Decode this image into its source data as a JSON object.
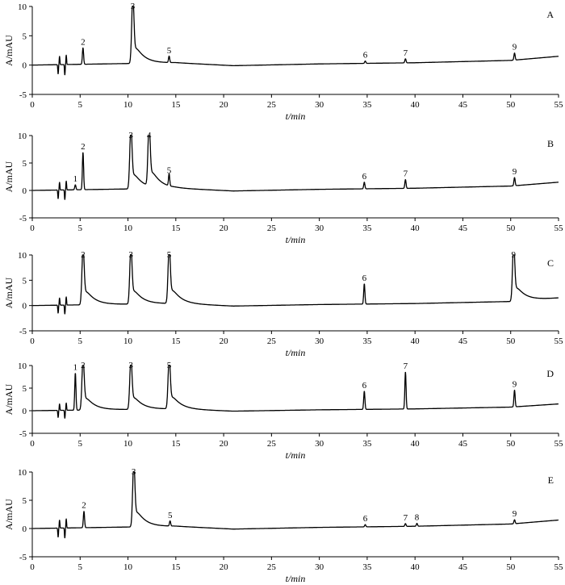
{
  "chart_data": [
    {
      "type": "line",
      "panel_label": "A",
      "xlabel": "t/min",
      "ylabel": "A/mAU",
      "xlim": [
        0,
        55
      ],
      "ylim": [
        -5,
        10
      ],
      "x_ticks": [
        0,
        5,
        10,
        15,
        20,
        25,
        30,
        35,
        40,
        45,
        50,
        55
      ],
      "y_ticks": [
        -5,
        0,
        5,
        10
      ],
      "baseline": [
        [
          0,
          0
        ],
        [
          15,
          0.4
        ],
        [
          21,
          -0.1
        ],
        [
          30,
          0.2
        ],
        [
          40,
          0.4
        ],
        [
          50,
          0.8
        ],
        [
          55,
          1.5
        ]
      ],
      "peaks": [
        {
          "label": "2",
          "t": 5.3,
          "height": 2.8
        },
        {
          "label": "3",
          "t": 10.5,
          "height": 11
        },
        {
          "label": "5",
          "t": 14.3,
          "height": 1.1
        },
        {
          "label": "6",
          "t": 34.8,
          "height": 0.4
        },
        {
          "label": "7",
          "t": 39.0,
          "height": 0.7
        },
        {
          "label": "9",
          "t": 50.4,
          "height": 1.2
        }
      ]
    },
    {
      "type": "line",
      "panel_label": "B",
      "xlabel": "t/min",
      "ylabel": "A/mAU",
      "xlim": [
        0,
        55
      ],
      "ylim": [
        -5,
        10
      ],
      "x_ticks": [
        0,
        5,
        10,
        15,
        20,
        25,
        30,
        35,
        40,
        45,
        50,
        55
      ],
      "y_ticks": [
        -5,
        0,
        5,
        10
      ],
      "baseline": [
        [
          0,
          0
        ],
        [
          15,
          0.4
        ],
        [
          21,
          -0.1
        ],
        [
          30,
          0.2
        ],
        [
          40,
          0.4
        ],
        [
          50,
          0.8
        ],
        [
          55,
          1.5
        ]
      ],
      "peaks": [
        {
          "label": "1",
          "t": 4.5,
          "height": 0.9
        },
        {
          "label": "2",
          "t": 5.3,
          "height": 6.8
        },
        {
          "label": "3",
          "t": 10.3,
          "height": 11
        },
        {
          "label": "4",
          "t": 12.2,
          "height": 11
        },
        {
          "label": "5",
          "t": 14.3,
          "height": 2.2
        },
        {
          "label": "6",
          "t": 34.7,
          "height": 1.2
        },
        {
          "label": "7",
          "t": 39.0,
          "height": 1.6
        },
        {
          "label": "9",
          "t": 50.4,
          "height": 1.5
        }
      ]
    },
    {
      "type": "line",
      "panel_label": "C",
      "xlabel": "t/min",
      "ylabel": "A/mAU",
      "xlim": [
        0,
        55
      ],
      "ylim": [
        -5,
        10
      ],
      "x_ticks": [
        0,
        5,
        10,
        15,
        20,
        25,
        30,
        35,
        40,
        45,
        50,
        55
      ],
      "y_ticks": [
        -5,
        0,
        5,
        10
      ],
      "baseline": [
        [
          0,
          0
        ],
        [
          15,
          0.4
        ],
        [
          21,
          -0.1
        ],
        [
          30,
          0.2
        ],
        [
          40,
          0.4
        ],
        [
          50,
          0.8
        ],
        [
          55,
          1.5
        ]
      ],
      "peaks": [
        {
          "label": "2",
          "t": 5.3,
          "height": 11
        },
        {
          "label": "3",
          "t": 10.3,
          "height": 11
        },
        {
          "label": "5",
          "t": 14.3,
          "height": 11
        },
        {
          "label": "6",
          "t": 34.7,
          "height": 4.0
        },
        {
          "label": "9",
          "t": 50.3,
          "height": 11
        }
      ]
    },
    {
      "type": "line",
      "panel_label": "D",
      "xlabel": "t/min",
      "ylabel": "A/mAU",
      "xlim": [
        0,
        55
      ],
      "ylim": [
        -5,
        10
      ],
      "x_ticks": [
        0,
        5,
        10,
        15,
        20,
        25,
        30,
        35,
        40,
        45,
        50,
        55
      ],
      "y_ticks": [
        -5,
        0,
        5,
        10
      ],
      "baseline": [
        [
          0,
          0
        ],
        [
          15,
          0.4
        ],
        [
          21,
          -0.1
        ],
        [
          30,
          0.2
        ],
        [
          40,
          0.4
        ],
        [
          50,
          0.8
        ],
        [
          55,
          1.5
        ]
      ],
      "peaks": [
        {
          "label": "1",
          "t": 4.5,
          "height": 8.2
        },
        {
          "label": "2",
          "t": 5.3,
          "height": 11
        },
        {
          "label": "3",
          "t": 10.3,
          "height": 11
        },
        {
          "label": "5",
          "t": 14.3,
          "height": 11
        },
        {
          "label": "6",
          "t": 34.7,
          "height": 4.0
        },
        {
          "label": "7",
          "t": 39.0,
          "height": 8.2
        },
        {
          "label": "9",
          "t": 50.4,
          "height": 3.7
        }
      ]
    },
    {
      "type": "line",
      "panel_label": "E",
      "xlabel": "t/min",
      "ylabel": "A/mAU",
      "xlim": [
        0,
        55
      ],
      "ylim": [
        -5,
        10
      ],
      "x_ticks": [
        0,
        5,
        10,
        15,
        20,
        25,
        30,
        35,
        40,
        45,
        50,
        55
      ],
      "y_ticks": [
        -5,
        0,
        5,
        10
      ],
      "baseline": [
        [
          0,
          0
        ],
        [
          15,
          0.4
        ],
        [
          21,
          -0.1
        ],
        [
          30,
          0.2
        ],
        [
          40,
          0.4
        ],
        [
          50,
          0.8
        ],
        [
          55,
          1.5
        ]
      ],
      "peaks": [
        {
          "label": "2",
          "t": 5.4,
          "height": 2.9
        },
        {
          "label": "3",
          "t": 10.6,
          "height": 11
        },
        {
          "label": "5",
          "t": 14.4,
          "height": 0.9
        },
        {
          "label": "6",
          "t": 34.8,
          "height": 0.4
        },
        {
          "label": "7",
          "t": 39.0,
          "height": 0.5
        },
        {
          "label": "8",
          "t": 40.2,
          "height": 0.5
        },
        {
          "label": "9",
          "t": 50.4,
          "height": 0.7
        }
      ]
    }
  ]
}
